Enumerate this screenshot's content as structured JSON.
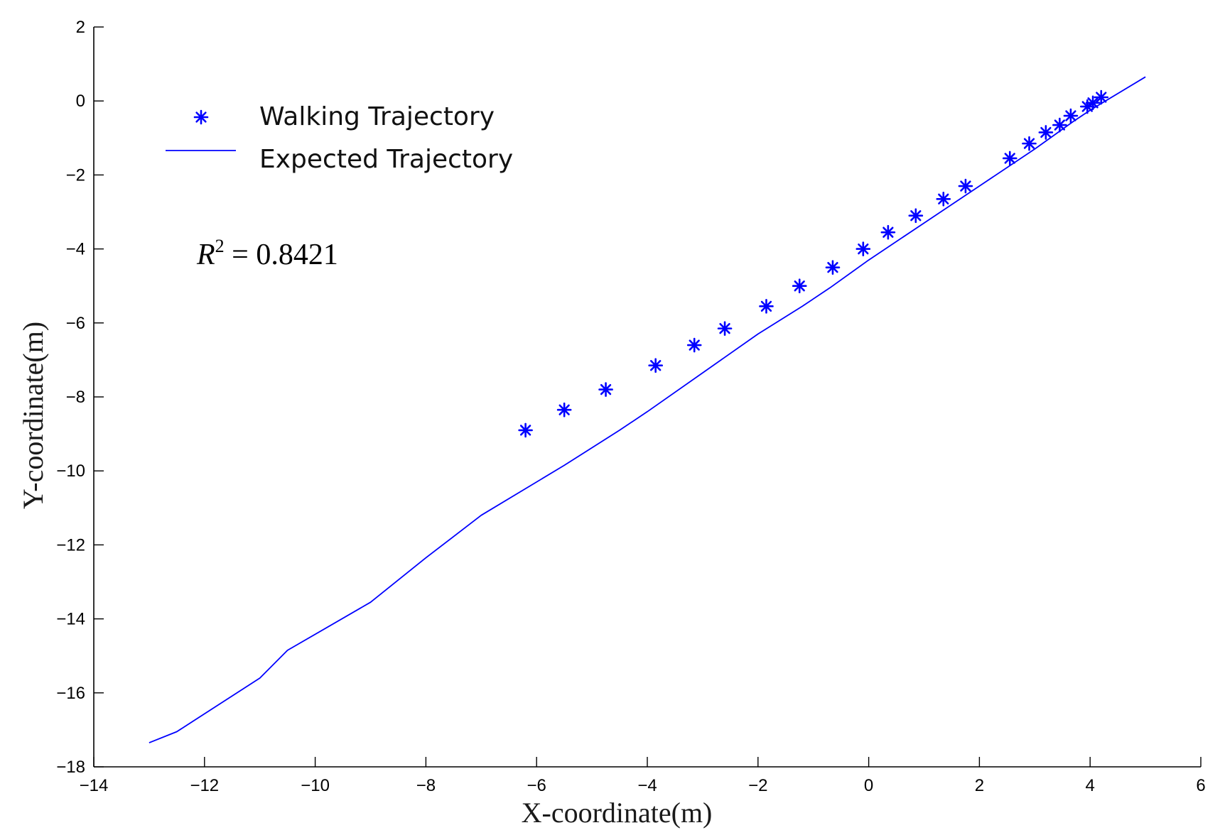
{
  "chart_data": {
    "type": "scatter",
    "xlabel": "X-coordinate(m)",
    "ylabel": "Y-coordinate(m)",
    "xlim": [
      -14,
      6
    ],
    "ylim": [
      -18,
      2
    ],
    "x_ticks": [
      -14,
      -12,
      -10,
      -8,
      -6,
      -4,
      -2,
      0,
      2,
      4,
      6
    ],
    "y_ticks": [
      2,
      0,
      -2,
      -4,
      -6,
      -8,
      -10,
      -12,
      -14,
      -16,
      -18
    ],
    "x_tick_labels": [
      "−14",
      "−12",
      "−10",
      "−8",
      "−6",
      "−4",
      "−2",
      "0",
      "2",
      "4",
      "6"
    ],
    "y_tick_labels": [
      "2",
      "0",
      "−2",
      "−4",
      "−6",
      "−8",
      "−10",
      "−12",
      "−14",
      "−16",
      "−18"
    ],
    "grid": false,
    "legend_position": "top-left",
    "annotation": {
      "symbol": "R",
      "superscript": "2",
      "text": " = 0.8421"
    },
    "series": [
      {
        "name": "Walking Trajectory",
        "kind": "scatter",
        "marker": "asterisk",
        "color": "#0000ff",
        "x": [
          -6.2,
          -5.5,
          -4.75,
          -3.85,
          -3.15,
          -2.6,
          -1.85,
          -1.25,
          -0.65,
          -0.1,
          0.35,
          0.85,
          1.35,
          1.75,
          2.55,
          2.9,
          3.2,
          3.45,
          3.65,
          3.95,
          4.05,
          4.2
        ],
        "y": [
          -8.9,
          -8.35,
          -7.8,
          -7.15,
          -6.6,
          -6.15,
          -5.55,
          -5.0,
          -4.5,
          -4.0,
          -3.55,
          -3.1,
          -2.65,
          -2.3,
          -1.55,
          -1.15,
          -0.85,
          -0.65,
          -0.4,
          -0.15,
          -0.05,
          0.1
        ]
      },
      {
        "name": "Expected Trajectory",
        "kind": "line",
        "color": "#0000ff",
        "x": [
          -13.0,
          -12.5,
          -11.0,
          -10.5,
          -9.0,
          -8.0,
          -7.0,
          -5.5,
          -4.5,
          -4.0,
          -3.0,
          -2.0,
          -1.2,
          -0.7,
          0.0,
          1.0,
          2.0,
          3.0,
          3.7,
          4.0,
          5.0
        ],
        "y": [
          -17.35,
          -17.05,
          -15.6,
          -14.85,
          -13.55,
          -12.35,
          -11.2,
          -9.85,
          -8.9,
          -8.4,
          -7.35,
          -6.3,
          -5.55,
          -5.05,
          -4.3,
          -3.3,
          -2.3,
          -1.3,
          -0.55,
          -0.25,
          0.65
        ]
      }
    ]
  }
}
